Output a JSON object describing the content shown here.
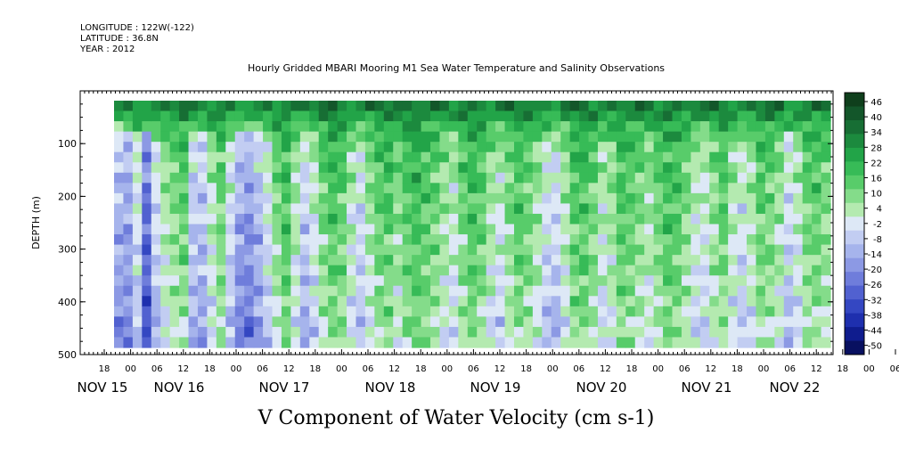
{
  "header": {
    "longitude": "LONGITUDE : 122W(-122)",
    "latitude": "LATITUDE : 36.8N",
    "year": "YEAR : 2012"
  },
  "chart_data": {
    "type": "heatmap",
    "title": "Hourly Gridded MBARI Mooring M1 Sea Water Temperature and Salinity Observations",
    "xlabel": "V Component of Water Velocity (cm s-1)",
    "ylabel": "DEPTH (m)",
    "colors": {
      "positive": "#10a030",
      "negative": "#3048d0"
    },
    "y_axis": {
      "range": [
        10,
        500
      ],
      "ticks": [
        "100",
        "200",
        "300",
        "400",
        "500"
      ],
      "inverted": true
    },
    "x_axis": {
      "range_hours": [
        0,
        192
      ],
      "hour_ticks": [
        "18",
        "00",
        "06",
        "12",
        "18",
        "00",
        "06",
        "12",
        "18",
        "00",
        "06",
        "12",
        "18",
        "00",
        "06",
        "12",
        "18",
        "00",
        "06",
        "12",
        "18",
        "00",
        "06",
        "12",
        "18",
        "00",
        "06",
        "12",
        "18",
        "00",
        "06",
        "12"
      ],
      "day_labels": [
        "NOV 15",
        "NOV 16",
        "NOV 17",
        "NOV 18",
        "NOV 19",
        "NOV 20",
        "NOV 21",
        "NOV 22"
      ]
    },
    "colorbar": {
      "levels": [
        "46",
        "40",
        "34",
        "28",
        "22",
        "16",
        "10",
        "4",
        "-2",
        "-8",
        "-14",
        "-20",
        "-26",
        "-32",
        "-38",
        "-44",
        "-50"
      ],
      "colors": [
        "#0f3f1c",
        "#13562a",
        "#176e34",
        "#1c8a3e",
        "#22a448",
        "#37bb57",
        "#58cc6a",
        "#84dc8a",
        "#b4eab0",
        "#dde8f6",
        "#c2cdf2",
        "#a6b4ec",
        "#8c99e4",
        "#6f7ddb",
        "#5161d0",
        "#3447c2",
        "#1e2fae",
        "#0f1c8e",
        "#081060"
      ]
    },
    "fields": {
      "column_means": [
        -22,
        -24,
        -10,
        -36,
        -14,
        -4,
        2,
        6,
        -16,
        -18,
        -6,
        4,
        -12,
        -24,
        -28,
        -20,
        -10,
        2,
        10,
        -4,
        -16,
        -8,
        4,
        10,
        6,
        -6,
        -12,
        -2,
        6,
        8,
        0,
        8,
        12,
        8,
        4,
        -2,
        -6,
        4,
        10,
        6,
        -4,
        -8,
        2,
        8,
        4,
        -2,
        -12,
        -14,
        -4,
        8,
        10,
        4,
        -6,
        -2,
        8,
        6,
        2,
        -2,
        4,
        10,
        8,
        2,
        -6,
        -8,
        0,
        6,
        -4,
        -10,
        -4,
        6,
        4,
        -2,
        -14,
        -6,
        4,
        6,
        2
      ],
      "row_means": [
        30,
        24,
        16,
        12,
        8,
        6,
        6,
        5,
        4,
        3,
        2,
        2,
        1,
        0,
        0,
        0,
        0,
        -2,
        -2,
        -4,
        -4,
        -6,
        -6,
        -6
      ]
    }
  }
}
